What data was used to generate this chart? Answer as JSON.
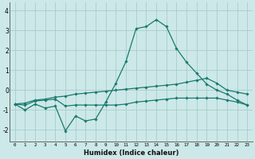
{
  "x": [
    0,
    1,
    2,
    3,
    4,
    5,
    6,
    7,
    8,
    9,
    10,
    11,
    12,
    13,
    14,
    15,
    16,
    17,
    18,
    19,
    20,
    21,
    22,
    23
  ],
  "line1": [
    -0.7,
    -1.0,
    -0.7,
    -0.9,
    -0.8,
    -2.05,
    -1.3,
    -1.55,
    -1.45,
    -0.6,
    0.35,
    1.45,
    3.1,
    3.2,
    3.55,
    3.2,
    2.1,
    1.4,
    0.85,
    0.3,
    0.0,
    -0.2,
    -0.5,
    -0.75
  ],
  "line2": [
    -0.7,
    -0.75,
    -0.55,
    -0.5,
    -0.45,
    -0.8,
    -0.75,
    -0.75,
    -0.75,
    -0.75,
    -0.75,
    -0.7,
    -0.6,
    -0.55,
    -0.5,
    -0.45,
    -0.4,
    -0.4,
    -0.4,
    -0.4,
    -0.4,
    -0.5,
    -0.6,
    -0.75
  ],
  "line3": [
    -0.7,
    -0.65,
    -0.5,
    -0.45,
    -0.35,
    -0.3,
    -0.2,
    -0.15,
    -0.1,
    -0.05,
    0.0,
    0.05,
    0.1,
    0.15,
    0.2,
    0.25,
    0.3,
    0.4,
    0.5,
    0.6,
    0.35,
    0.0,
    -0.1,
    -0.2
  ],
  "bg_color": "#cce8e8",
  "grid_color": "#aacccc",
  "line_color": "#1a7a6e",
  "xlabel": "Humidex (Indice chaleur)",
  "ylabel_ticks": [
    -2,
    -1,
    0,
    1,
    2,
    3,
    4
  ],
  "ylim": [
    -2.6,
    4.4
  ],
  "xlim": [
    -0.5,
    23.5
  ],
  "marker": "D",
  "markersize": 1.8,
  "linewidth": 0.9
}
